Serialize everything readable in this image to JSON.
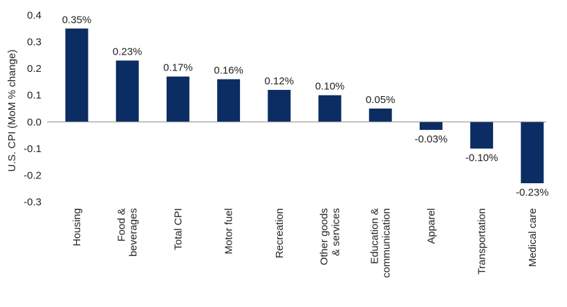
{
  "chart_data": {
    "type": "bar",
    "title": "",
    "ylabel": "U.S. CPI (MoM % change)",
    "xlabel": "",
    "ylim": [
      -0.3,
      0.4
    ],
    "yticks": [
      0.4,
      0.3,
      0.2,
      0.1,
      0.0,
      -0.1,
      -0.2,
      -0.3
    ],
    "ytick_labels": [
      "0.4",
      "0.3",
      "0.2",
      "0.1",
      "0.0",
      "-0.1",
      "-0.2",
      "-0.3"
    ],
    "categories": [
      [
        "Housing"
      ],
      [
        "Food &",
        "beverages"
      ],
      [
        "Total CPI"
      ],
      [
        "Motor fuel"
      ],
      [
        "Recreation"
      ],
      [
        "Other goods",
        "& services"
      ],
      [
        "Education &",
        "communication"
      ],
      [
        "Apparel"
      ],
      [
        "Transportation"
      ],
      [
        "Medical care"
      ]
    ],
    "values": [
      0.35,
      0.23,
      0.17,
      0.16,
      0.12,
      0.1,
      0.05,
      -0.03,
      -0.1,
      -0.23
    ],
    "value_labels": [
      "0.35%",
      "0.23%",
      "0.17%",
      "0.16%",
      "0.12%",
      "0.10%",
      "0.05%",
      "-0.03%",
      "-0.10%",
      "-0.23%"
    ],
    "bar_color": "#0b2d63",
    "grid": false,
    "legend": "none"
  }
}
